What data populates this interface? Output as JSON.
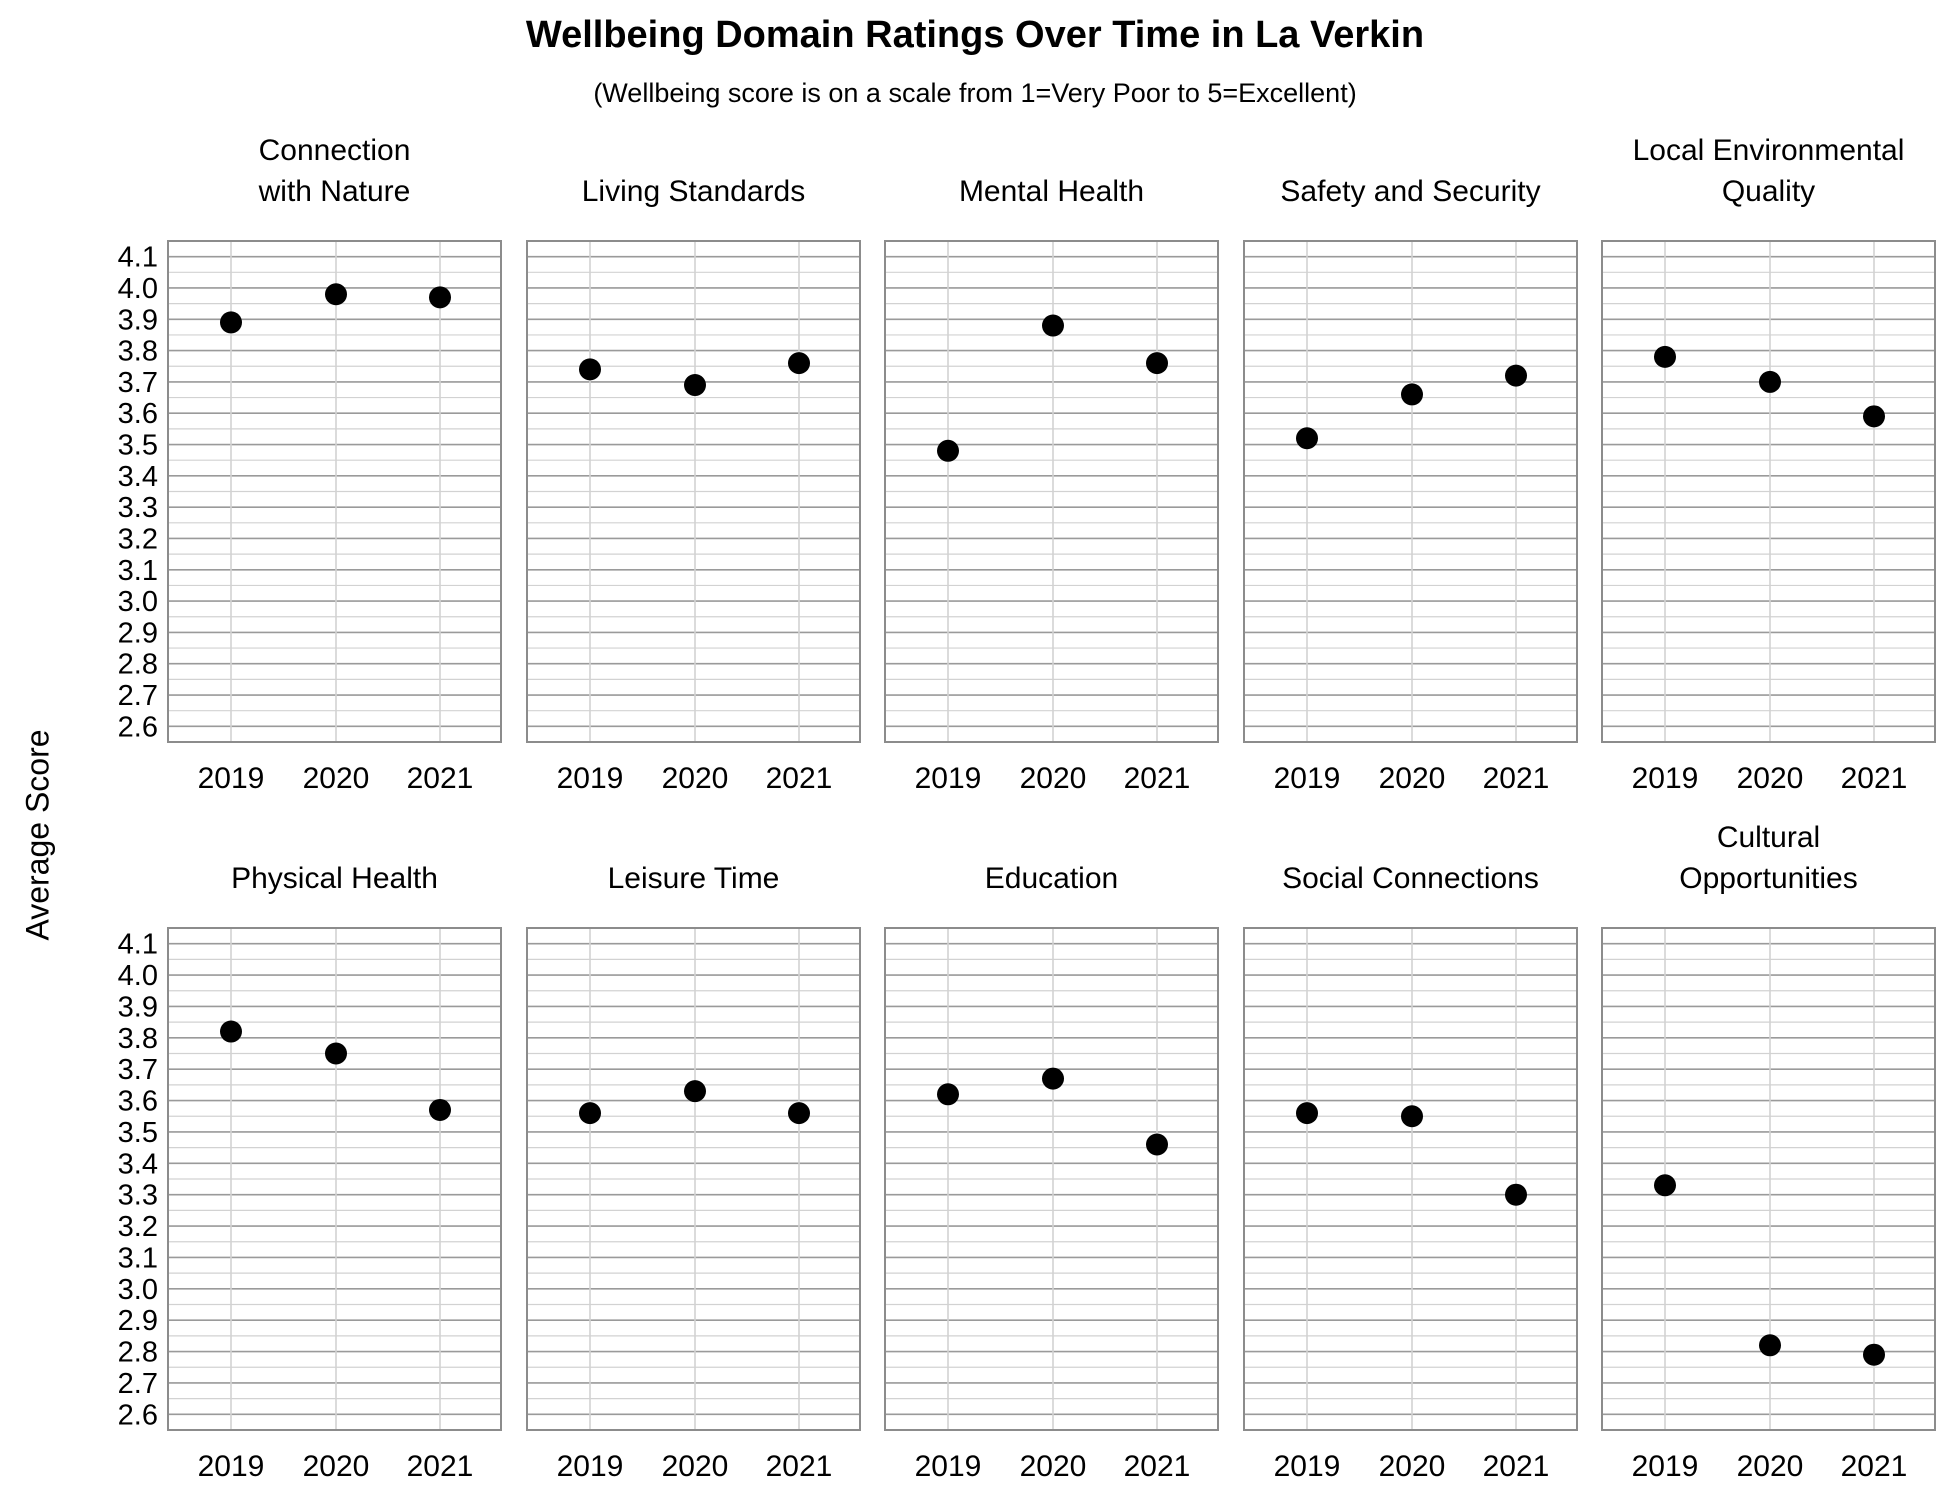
{
  "title": "Wellbeing Domain Ratings Over Time in La Verkin",
  "subtitle": "(Wellbeing score is on a scale from 1=Very Poor to 5=Excellent)",
  "ylabel": "Average Score",
  "chart_data": {
    "type": "scatter",
    "title": "Wellbeing Domain Ratings Over Time in La Verkin",
    "subtitle": "(Wellbeing score is on a scale from 1=Very Poor to 5=Excellent)",
    "ylabel": "Average Score",
    "categories": [
      "2019",
      "2020",
      "2021"
    ],
    "ylim": [
      2.55,
      4.15
    ],
    "yticks": [
      "2.6",
      "2.7",
      "2.8",
      "2.9",
      "3.0",
      "3.1",
      "3.2",
      "3.3",
      "3.4",
      "3.5",
      "3.6",
      "3.7",
      "3.8",
      "3.9",
      "4.0",
      "4.1"
    ],
    "grid": true,
    "marker_color": "#000000",
    "panels": [
      {
        "name": [
          "Connection",
          "with Nature"
        ],
        "values": [
          3.89,
          3.98,
          3.97
        ]
      },
      {
        "name": [
          "Living Standards"
        ],
        "values": [
          3.74,
          3.69,
          3.76
        ]
      },
      {
        "name": [
          "Mental Health"
        ],
        "values": [
          3.48,
          3.88,
          3.76
        ]
      },
      {
        "name": [
          "Safety and Security"
        ],
        "values": [
          3.52,
          3.66,
          3.72
        ]
      },
      {
        "name": [
          "Local Environmental",
          "Quality"
        ],
        "values": [
          3.78,
          3.7,
          3.59
        ]
      },
      {
        "name": [
          "Physical Health"
        ],
        "values": [
          3.82,
          3.75,
          3.57
        ]
      },
      {
        "name": [
          "Leisure Time"
        ],
        "values": [
          3.56,
          3.63,
          3.56
        ]
      },
      {
        "name": [
          "Education"
        ],
        "values": [
          3.62,
          3.67,
          3.46
        ]
      },
      {
        "name": [
          "Social Connections"
        ],
        "values": [
          3.56,
          3.55,
          3.3
        ]
      },
      {
        "name": [
          "Cultural",
          "Opportunities"
        ],
        "values": [
          3.33,
          2.82,
          2.79
        ]
      }
    ]
  }
}
